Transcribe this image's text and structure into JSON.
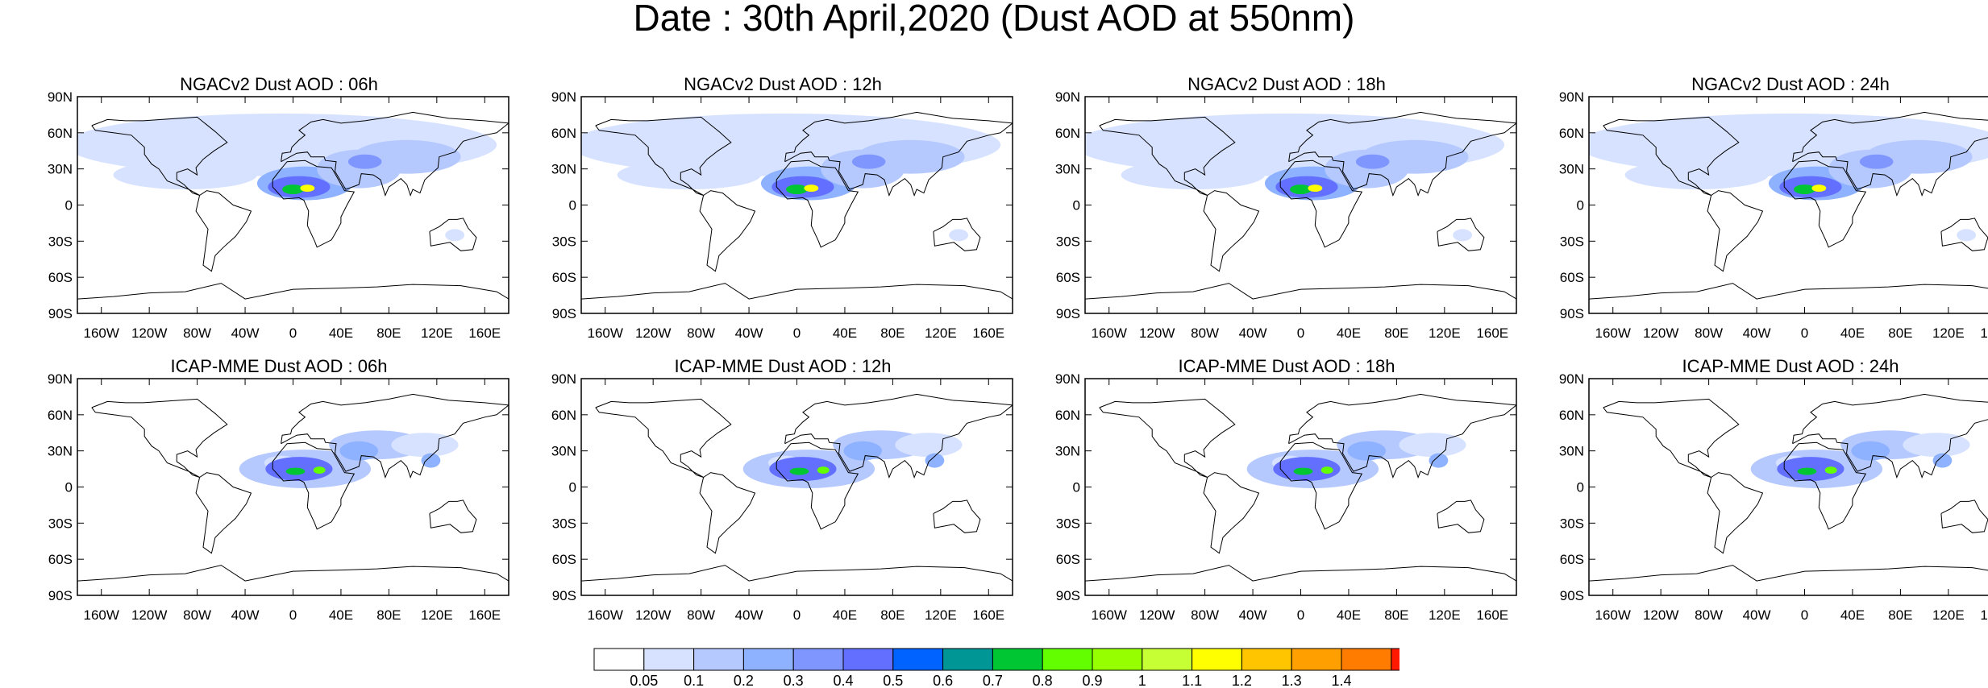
{
  "title": "Date : 30th April,2020 (Dust AOD at 550nm)",
  "panels": [
    {
      "title": "NGACv2 Dust AOD : 06h",
      "model": "NGACv2",
      "lead": "06h"
    },
    {
      "title": "NGACv2 Dust AOD : 12h",
      "model": "NGACv2",
      "lead": "12h"
    },
    {
      "title": "NGACv2 Dust AOD : 18h",
      "model": "NGACv2",
      "lead": "18h"
    },
    {
      "title": "NGACv2 Dust AOD : 24h",
      "model": "NGACv2",
      "lead": "24h"
    },
    {
      "title": "ICAP-MME Dust AOD : 06h",
      "model": "ICAP-MME",
      "lead": "06h"
    },
    {
      "title": "ICAP-MME Dust AOD : 12h",
      "model": "ICAP-MME",
      "lead": "12h"
    },
    {
      "title": "ICAP-MME Dust AOD : 18h",
      "model": "ICAP-MME",
      "lead": "18h"
    },
    {
      "title": "ICAP-MME Dust AOD : 24h",
      "model": "ICAP-MME",
      "lead": "24h"
    }
  ],
  "axes": {
    "lat_labels": [
      "90N",
      "60N",
      "30N",
      "0",
      "30S",
      "60S",
      "90S"
    ],
    "lon_labels": [
      "160W",
      "120W",
      "80W",
      "40W",
      "0",
      "40E",
      "80E",
      "120E",
      "160E"
    ]
  },
  "colorbar": {
    "colors": [
      "#ffffff",
      "#d6e2ff",
      "#b5c9ff",
      "#8eb2ff",
      "#7f96ff",
      "#6370ff",
      "#0063ff",
      "#009696",
      "#00c633",
      "#63ff00",
      "#96ff00",
      "#c6ff33",
      "#ffff00",
      "#ffc600",
      "#ffa000",
      "#ff7c00",
      "#ff1900"
    ],
    "labels": [
      "0.05",
      "0.1",
      "0.2",
      "0.3",
      "0.4",
      "0.5",
      "0.6",
      "0.7",
      "0.8",
      "0.9",
      "1",
      "1.1",
      "1.2",
      "1.3",
      "1.4"
    ]
  }
}
